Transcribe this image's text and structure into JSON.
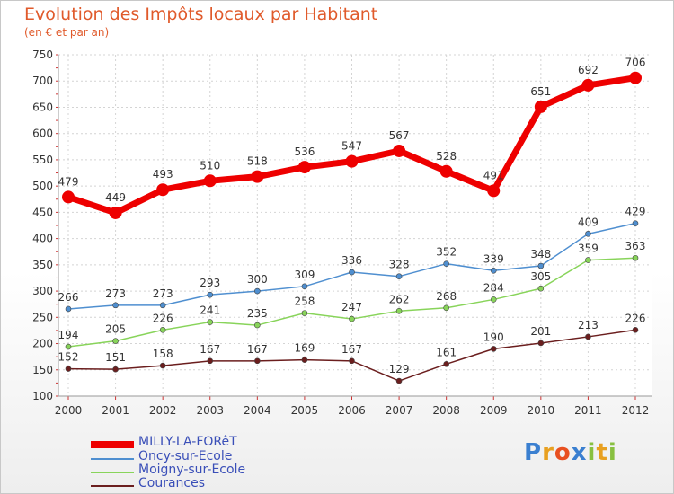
{
  "title": "Evolution des Impôts locaux par Habitant",
  "subtitle": "(en € et par an)",
  "chart_data": {
    "type": "line",
    "title": "Evolution des Impôts locaux par Habitant",
    "subtitle": "(en € et par an)",
    "xlabel": "",
    "ylabel": "",
    "x": [
      "2000",
      "2001",
      "2002",
      "2003",
      "2004",
      "2005",
      "2006",
      "2007",
      "2008",
      "2009",
      "2010",
      "2011",
      "2012"
    ],
    "ylim": [
      100,
      750
    ],
    "yticks": [
      100,
      150,
      200,
      250,
      300,
      350,
      400,
      450,
      500,
      550,
      600,
      650,
      700,
      750
    ],
    "grid": true,
    "legend_position": "bottom-left",
    "series": [
      {
        "name": "MILLY-LA-FORêT",
        "color": "#ee0000",
        "values": [
          479,
          449,
          493,
          510,
          518,
          536,
          547,
          567,
          528,
          491,
          651,
          692,
          706
        ]
      },
      {
        "name": "Oncy-sur-Ecole",
        "color": "#4f8fd0",
        "values": [
          266,
          273,
          273,
          293,
          300,
          309,
          336,
          328,
          352,
          339,
          348,
          409,
          429
        ]
      },
      {
        "name": "Moigny-sur-Ecole",
        "color": "#88d45a",
        "values": [
          194,
          205,
          226,
          241,
          235,
          258,
          247,
          262,
          268,
          284,
          305,
          359,
          363
        ]
      },
      {
        "name": "Courances",
        "color": "#6b1e1e",
        "values": [
          152,
          151,
          158,
          167,
          167,
          169,
          167,
          129,
          161,
          190,
          201,
          213,
          226
        ]
      }
    ]
  },
  "logo": {
    "text": "Proxiti"
  }
}
